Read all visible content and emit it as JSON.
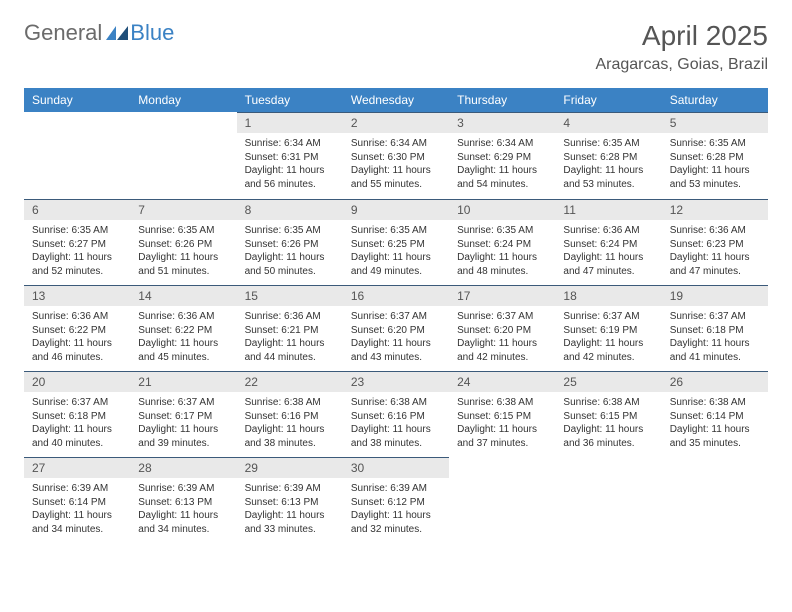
{
  "logo": {
    "part1": "General",
    "part2": "Blue"
  },
  "title": "April 2025",
  "location": "Aragarcas, Goias, Brazil",
  "colors": {
    "header_bg": "#3b82c4",
    "header_text": "#ffffff",
    "daynum_bg": "#e9e9e9",
    "daynum_border": "#3b5a7a",
    "body_text": "#333333",
    "title_text": "#555555",
    "logo_gray": "#6b6b6b",
    "logo_blue": "#3b82c4"
  },
  "weekdays": [
    "Sunday",
    "Monday",
    "Tuesday",
    "Wednesday",
    "Thursday",
    "Friday",
    "Saturday"
  ],
  "weeks": [
    [
      null,
      null,
      {
        "n": "1",
        "sr": "6:34 AM",
        "ss": "6:31 PM",
        "dl": "11 hours and 56 minutes."
      },
      {
        "n": "2",
        "sr": "6:34 AM",
        "ss": "6:30 PM",
        "dl": "11 hours and 55 minutes."
      },
      {
        "n": "3",
        "sr": "6:34 AM",
        "ss": "6:29 PM",
        "dl": "11 hours and 54 minutes."
      },
      {
        "n": "4",
        "sr": "6:35 AM",
        "ss": "6:28 PM",
        "dl": "11 hours and 53 minutes."
      },
      {
        "n": "5",
        "sr": "6:35 AM",
        "ss": "6:28 PM",
        "dl": "11 hours and 53 minutes."
      }
    ],
    [
      {
        "n": "6",
        "sr": "6:35 AM",
        "ss": "6:27 PM",
        "dl": "11 hours and 52 minutes."
      },
      {
        "n": "7",
        "sr": "6:35 AM",
        "ss": "6:26 PM",
        "dl": "11 hours and 51 minutes."
      },
      {
        "n": "8",
        "sr": "6:35 AM",
        "ss": "6:26 PM",
        "dl": "11 hours and 50 minutes."
      },
      {
        "n": "9",
        "sr": "6:35 AM",
        "ss": "6:25 PM",
        "dl": "11 hours and 49 minutes."
      },
      {
        "n": "10",
        "sr": "6:35 AM",
        "ss": "6:24 PM",
        "dl": "11 hours and 48 minutes."
      },
      {
        "n": "11",
        "sr": "6:36 AM",
        "ss": "6:24 PM",
        "dl": "11 hours and 47 minutes."
      },
      {
        "n": "12",
        "sr": "6:36 AM",
        "ss": "6:23 PM",
        "dl": "11 hours and 47 minutes."
      }
    ],
    [
      {
        "n": "13",
        "sr": "6:36 AM",
        "ss": "6:22 PM",
        "dl": "11 hours and 46 minutes."
      },
      {
        "n": "14",
        "sr": "6:36 AM",
        "ss": "6:22 PM",
        "dl": "11 hours and 45 minutes."
      },
      {
        "n": "15",
        "sr": "6:36 AM",
        "ss": "6:21 PM",
        "dl": "11 hours and 44 minutes."
      },
      {
        "n": "16",
        "sr": "6:37 AM",
        "ss": "6:20 PM",
        "dl": "11 hours and 43 minutes."
      },
      {
        "n": "17",
        "sr": "6:37 AM",
        "ss": "6:20 PM",
        "dl": "11 hours and 42 minutes."
      },
      {
        "n": "18",
        "sr": "6:37 AM",
        "ss": "6:19 PM",
        "dl": "11 hours and 42 minutes."
      },
      {
        "n": "19",
        "sr": "6:37 AM",
        "ss": "6:18 PM",
        "dl": "11 hours and 41 minutes."
      }
    ],
    [
      {
        "n": "20",
        "sr": "6:37 AM",
        "ss": "6:18 PM",
        "dl": "11 hours and 40 minutes."
      },
      {
        "n": "21",
        "sr": "6:37 AM",
        "ss": "6:17 PM",
        "dl": "11 hours and 39 minutes."
      },
      {
        "n": "22",
        "sr": "6:38 AM",
        "ss": "6:16 PM",
        "dl": "11 hours and 38 minutes."
      },
      {
        "n": "23",
        "sr": "6:38 AM",
        "ss": "6:16 PM",
        "dl": "11 hours and 38 minutes."
      },
      {
        "n": "24",
        "sr": "6:38 AM",
        "ss": "6:15 PM",
        "dl": "11 hours and 37 minutes."
      },
      {
        "n": "25",
        "sr": "6:38 AM",
        "ss": "6:15 PM",
        "dl": "11 hours and 36 minutes."
      },
      {
        "n": "26",
        "sr": "6:38 AM",
        "ss": "6:14 PM",
        "dl": "11 hours and 35 minutes."
      }
    ],
    [
      {
        "n": "27",
        "sr": "6:39 AM",
        "ss": "6:14 PM",
        "dl": "11 hours and 34 minutes."
      },
      {
        "n": "28",
        "sr": "6:39 AM",
        "ss": "6:13 PM",
        "dl": "11 hours and 34 minutes."
      },
      {
        "n": "29",
        "sr": "6:39 AM",
        "ss": "6:13 PM",
        "dl": "11 hours and 33 minutes."
      },
      {
        "n": "30",
        "sr": "6:39 AM",
        "ss": "6:12 PM",
        "dl": "11 hours and 32 minutes."
      },
      null,
      null,
      null
    ]
  ],
  "labels": {
    "sunrise": "Sunrise:",
    "sunset": "Sunset:",
    "daylight": "Daylight:"
  }
}
